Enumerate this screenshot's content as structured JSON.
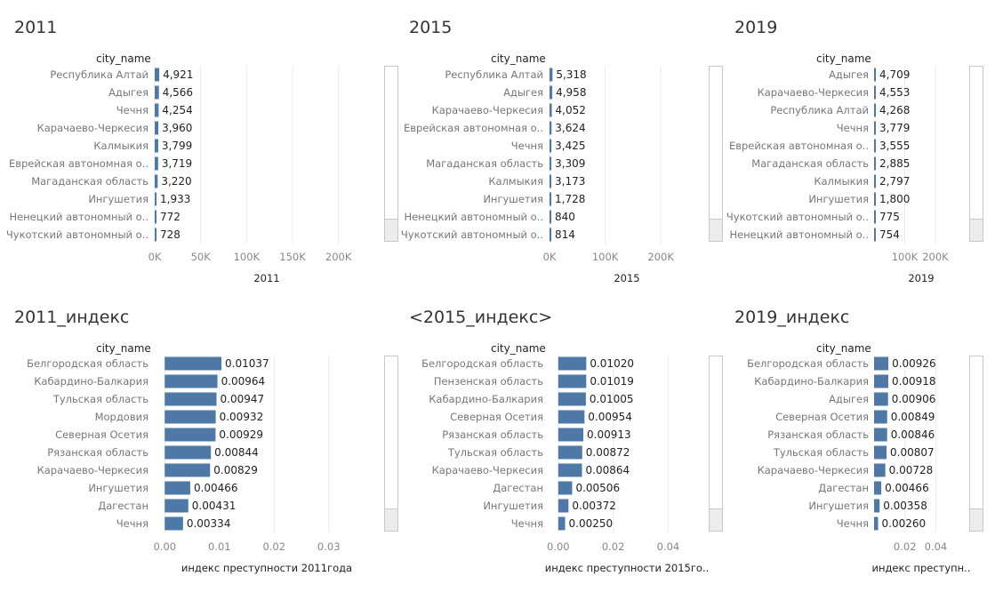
{
  "panels": [
    {
      "title": "2011",
      "field_header": "city_name",
      "axis_title": "2011",
      "value_format": "int",
      "chart_data": {
        "type": "bar",
        "orientation": "horizontal",
        "title": "2011",
        "xlabel": "2011",
        "categories": [
          "Республика Алтай",
          "Адыгея",
          "Чечня",
          "Карачаево-Черкесия",
          "Калмыкия",
          "Еврейская автономная о..",
          "Магаданская область",
          "Ингушетия",
          "Ненецкий автономный о..",
          "Чукотский автономный о.."
        ],
        "values": [
          4921,
          4566,
          4254,
          3960,
          3799,
          3719,
          3220,
          1933,
          772,
          728
        ],
        "data_labels": [
          "4,921",
          "4,566",
          "4,254",
          "3,960",
          "3,799",
          "3,719",
          "3,220",
          "1,933",
          "772",
          "728"
        ],
        "xlim": [
          0,
          240000
        ],
        "xticks": [
          0,
          50000,
          100000,
          150000,
          200000
        ],
        "xtick_labels": [
          "0K",
          "50K",
          "100K",
          "150K",
          "200K"
        ],
        "grid": true,
        "bar_color": "#4e79a7"
      }
    },
    {
      "title": "2015",
      "field_header": "city_name",
      "axis_title": "2015",
      "value_format": "int",
      "chart_data": {
        "type": "bar",
        "orientation": "horizontal",
        "title": "2015",
        "xlabel": "2015",
        "categories": [
          "Республика Алтай",
          "Адыгея",
          "Карачаево-Черкесия",
          "Еврейская автономная о..",
          "Чечня",
          "Магаданская область",
          "Калмыкия",
          "Ингушетия",
          "Ненецкий автономный о..",
          "Чукотский автономный о.."
        ],
        "values": [
          5318,
          4958,
          4052,
          3624,
          3425,
          3309,
          3173,
          1728,
          840,
          814
        ],
        "data_labels": [
          "5,318",
          "4,958",
          "4,052",
          "3,624",
          "3,425",
          "3,309",
          "3,173",
          "1,728",
          "840",
          "814"
        ],
        "xlim": [
          0,
          270000
        ],
        "xticks": [
          0,
          100000,
          200000
        ],
        "xtick_labels": [
          "0K",
          "100K",
          "200K"
        ],
        "grid": true,
        "bar_color": "#4e79a7"
      }
    },
    {
      "title": "2019",
      "field_header": "city_name",
      "axis_title": "2019",
      "value_format": "int",
      "chart_data": {
        "type": "bar",
        "orientation": "horizontal",
        "title": "2019",
        "xlabel": "2019",
        "categories": [
          "Адыгея",
          "Карачаево-Черкесия",
          "Республика Алтай",
          "Чечня",
          "Еврейская автономная о..",
          "Магаданская область",
          "Калмыкия",
          "Ингушетия",
          "Чукотский автономный о..",
          "Ненецкий автономный о.."
        ],
        "values": [
          4709,
          4553,
          4268,
          3779,
          3555,
          2885,
          2797,
          1800,
          775,
          754
        ],
        "data_labels": [
          "4,709",
          "4,553",
          "4,268",
          "3,779",
          "3,555",
          "2,885",
          "2,797",
          "1,800",
          "775",
          "754"
        ],
        "xlim": [
          0,
          290000
        ],
        "xticks": [
          100000,
          200000
        ],
        "xtick_labels": [
          "100K",
          "200K"
        ],
        "grid": true,
        "bar_color": "#4e79a7"
      }
    },
    {
      "title": "2011_индекс",
      "field_header": "city_name",
      "axis_title": "индекс преступности 2011года",
      "value_format": "dec",
      "chart_data": {
        "type": "bar",
        "orientation": "horizontal",
        "title": "2011_индекс",
        "xlabel": "индекс преступности 2011года",
        "categories": [
          "Белгородская область",
          "Кабардино-Балкария",
          "Тульская область",
          "Мордовия",
          "Северная Осетия",
          "Рязанская область",
          "Карачаево-Черкесия",
          "Ингушетия",
          "Дагестан",
          "Чечня"
        ],
        "values": [
          0.01037,
          0.00964,
          0.00947,
          0.00932,
          0.00929,
          0.00844,
          0.00829,
          0.00466,
          0.00431,
          0.00334
        ],
        "data_labels": [
          "0.01037",
          "0.00964",
          "0.00947",
          "0.00932",
          "0.00929",
          "0.00844",
          "0.00829",
          "0.00466",
          "0.00431",
          "0.00334"
        ],
        "xlim": [
          -0.002,
          0.0385
        ],
        "xticks": [
          0,
          0.01,
          0.02,
          0.03
        ],
        "xtick_labels": [
          "0.00",
          "0.01",
          "0.02",
          "0.03"
        ],
        "grid": true,
        "bar_color": "#4e79a7"
      }
    },
    {
      "title": "<2015_индекс>",
      "field_header": "city_name",
      "axis_title": "индекс преступности 2015го..",
      "value_format": "dec",
      "chart_data": {
        "type": "bar",
        "orientation": "horizontal",
        "title": "<2015_индекс>",
        "xlabel": "индекс преступности 2015го..",
        "categories": [
          "Белгородская область",
          "Пензенская область",
          "Кабардино-Балкария",
          "Северная Осетия",
          "Рязанская область",
          "Тульская область",
          "Карачаево-Черкесия",
          "Дагестан",
          "Ингушетия",
          "Чечня"
        ],
        "values": [
          0.0102,
          0.01019,
          0.01005,
          0.00954,
          0.00913,
          0.00872,
          0.00864,
          0.00506,
          0.00372,
          0.0025
        ],
        "data_labels": [
          "0.01020",
          "0.01019",
          "0.01005",
          "0.00954",
          "0.00913",
          "0.00872",
          "0.00864",
          "0.00506",
          "0.00372",
          "0.00250"
        ],
        "xlim": [
          -0.0035,
          0.0515
        ],
        "xticks": [
          0,
          0.02,
          0.04
        ],
        "xtick_labels": [
          "0.00",
          "0.02",
          "0.04"
        ],
        "grid": true,
        "bar_color": "#4e79a7"
      }
    },
    {
      "title": "2019_индекс",
      "field_header": "city_name",
      "axis_title": "индекс преступн..",
      "value_format": "dec",
      "chart_data": {
        "type": "bar",
        "orientation": "horizontal",
        "title": "2019_индекс",
        "xlabel": "индекс преступн..",
        "categories": [
          "Белгородская область",
          "Кабардино-Балкария",
          "Адыгея",
          "Северная Осетия",
          "Рязанская область",
          "Тульская область",
          "Карачаево-Черкесия",
          "Дагестан",
          "Ингушетия",
          "Чечня"
        ],
        "values": [
          0.00926,
          0.00918,
          0.00906,
          0.00849,
          0.00846,
          0.00807,
          0.00728,
          0.00466,
          0.00358,
          0.0026
        ],
        "data_labels": [
          "0.00926",
          "0.00918",
          "0.00906",
          "0.00849",
          "0.00846",
          "0.00807",
          "0.00728",
          "0.00466",
          "0.00358",
          "0.00260"
        ],
        "xlim": [
          0,
          0.0576
        ],
        "xticks": [
          0.02,
          0.04
        ],
        "xtick_labels": [
          "0.02",
          "0.04"
        ],
        "grid": true,
        "bar_color": "#4e79a7"
      }
    }
  ]
}
